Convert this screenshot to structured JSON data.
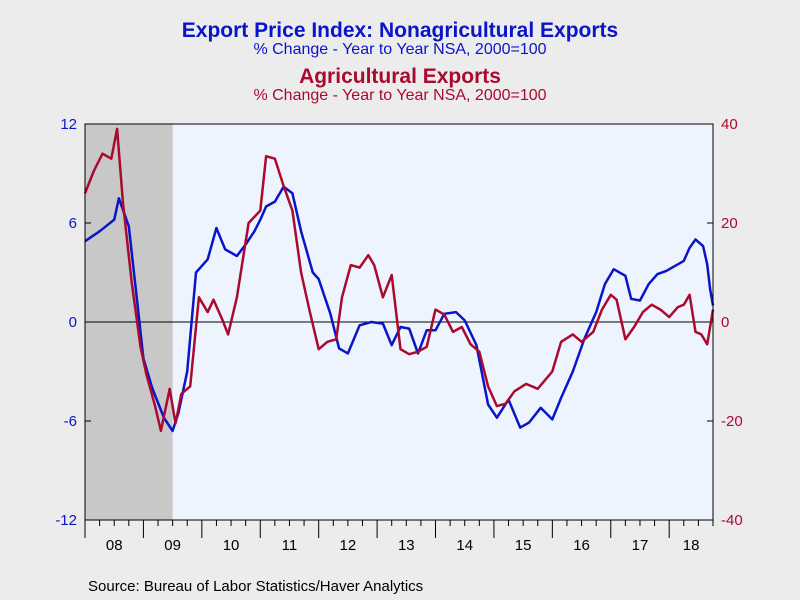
{
  "titles": {
    "line1": "Export Price Index: Nonagricultural Exports",
    "line2": "% Change - Year to Year    NSA, 2000=100",
    "line3": "Agricultural Exports",
    "line4": "% Change - Year to Year    NSA, 2000=100"
  },
  "source": "Source:  Bureau of Labor Statistics/Haver Analytics",
  "colors": {
    "nonag": "#0a14c8",
    "ag": "#aa0a2e",
    "plot_bg": "#eef4fd",
    "recession": "#c8c8c8"
  },
  "chart_data": {
    "type": "line",
    "x_unit": "year",
    "xlim": [
      2008.0,
      2018.75
    ],
    "x_tick_labels": [
      "08",
      "09",
      "10",
      "11",
      "12",
      "13",
      "14",
      "15",
      "16",
      "17",
      "18"
    ],
    "left_axis": {
      "ylim": [
        -12,
        12
      ],
      "ticks": [
        "12",
        "6",
        "0",
        "-6",
        "-12"
      ],
      "color": "#0a14c8"
    },
    "right_axis": {
      "ylim": [
        -40,
        40
      ],
      "ticks": [
        "40",
        "20",
        "0",
        "-20",
        "-40"
      ],
      "color": "#aa0a2e"
    },
    "recession_shading": [
      2008.0,
      2009.5
    ],
    "zero_line": true,
    "series": [
      {
        "name": "Nonagricultural Exports",
        "axis": "left",
        "points": [
          [
            2008.0,
            4.9
          ],
          [
            2008.25,
            5.5
          ],
          [
            2008.5,
            6.2
          ],
          [
            2008.58,
            7.5
          ],
          [
            2008.75,
            5.8
          ],
          [
            2008.9,
            1.0
          ],
          [
            2009.0,
            -2.2
          ],
          [
            2009.15,
            -4.0
          ],
          [
            2009.35,
            -5.8
          ],
          [
            2009.5,
            -6.6
          ],
          [
            2009.6,
            -5.5
          ],
          [
            2009.75,
            -3.0
          ],
          [
            2009.9,
            3.0
          ],
          [
            2010.1,
            3.8
          ],
          [
            2010.25,
            5.7
          ],
          [
            2010.4,
            4.4
          ],
          [
            2010.6,
            4.0
          ],
          [
            2010.75,
            4.7
          ],
          [
            2010.9,
            5.5
          ],
          [
            2011.0,
            6.2
          ],
          [
            2011.1,
            7.0
          ],
          [
            2011.25,
            7.3
          ],
          [
            2011.4,
            8.2
          ],
          [
            2011.55,
            7.8
          ],
          [
            2011.7,
            5.5
          ],
          [
            2011.9,
            3.0
          ],
          [
            2012.0,
            2.6
          ],
          [
            2012.2,
            0.5
          ],
          [
            2012.35,
            -1.6
          ],
          [
            2012.5,
            -1.9
          ],
          [
            2012.7,
            -0.2
          ],
          [
            2012.9,
            0.0
          ],
          [
            2013.1,
            -0.1
          ],
          [
            2013.25,
            -1.4
          ],
          [
            2013.4,
            -0.3
          ],
          [
            2013.55,
            -0.4
          ],
          [
            2013.7,
            -1.9
          ],
          [
            2013.85,
            -0.5
          ],
          [
            2014.0,
            -0.5
          ],
          [
            2014.15,
            0.5
          ],
          [
            2014.35,
            0.6
          ],
          [
            2014.5,
            0.1
          ],
          [
            2014.7,
            -1.4
          ],
          [
            2014.9,
            -5.0
          ],
          [
            2015.05,
            -5.8
          ],
          [
            2015.25,
            -4.7
          ],
          [
            2015.45,
            -6.4
          ],
          [
            2015.6,
            -6.1
          ],
          [
            2015.8,
            -5.2
          ],
          [
            2016.0,
            -5.9
          ],
          [
            2016.15,
            -4.6
          ],
          [
            2016.35,
            -3.0
          ],
          [
            2016.55,
            -1.0
          ],
          [
            2016.75,
            0.6
          ],
          [
            2016.9,
            2.3
          ],
          [
            2017.05,
            3.2
          ],
          [
            2017.25,
            2.8
          ],
          [
            2017.35,
            1.4
          ],
          [
            2017.5,
            1.3
          ],
          [
            2017.65,
            2.3
          ],
          [
            2017.8,
            2.9
          ],
          [
            2017.95,
            3.1
          ],
          [
            2018.1,
            3.4
          ],
          [
            2018.25,
            3.7
          ],
          [
            2018.35,
            4.5
          ],
          [
            2018.45,
            5.0
          ],
          [
            2018.58,
            4.6
          ],
          [
            2018.65,
            3.5
          ],
          [
            2018.7,
            2.0
          ],
          [
            2018.75,
            1.0
          ]
        ]
      },
      {
        "name": "Agricultural Exports",
        "axis": "right",
        "points": [
          [
            2008.0,
            26.0
          ],
          [
            2008.15,
            30.5
          ],
          [
            2008.3,
            34.0
          ],
          [
            2008.45,
            33.0
          ],
          [
            2008.55,
            39.0
          ],
          [
            2008.65,
            24.0
          ],
          [
            2008.8,
            8.0
          ],
          [
            2008.95,
            -5.0
          ],
          [
            2009.05,
            -10.5
          ],
          [
            2009.2,
            -17.0
          ],
          [
            2009.3,
            -22.0
          ],
          [
            2009.45,
            -13.5
          ],
          [
            2009.55,
            -20.5
          ],
          [
            2009.65,
            -14.5
          ],
          [
            2009.8,
            -13.0
          ],
          [
            2009.95,
            5.0
          ],
          [
            2010.1,
            2.0
          ],
          [
            2010.2,
            4.5
          ],
          [
            2010.35,
            0.5
          ],
          [
            2010.45,
            -2.5
          ],
          [
            2010.6,
            5.0
          ],
          [
            2010.8,
            20.0
          ],
          [
            2011.0,
            22.5
          ],
          [
            2011.1,
            33.5
          ],
          [
            2011.25,
            33.0
          ],
          [
            2011.4,
            27.5
          ],
          [
            2011.55,
            22.5
          ],
          [
            2011.7,
            10.0
          ],
          [
            2011.85,
            2.0
          ],
          [
            2012.0,
            -5.5
          ],
          [
            2012.15,
            -4.0
          ],
          [
            2012.3,
            -3.5
          ],
          [
            2012.4,
            5.0
          ],
          [
            2012.55,
            11.5
          ],
          [
            2012.7,
            11.0
          ],
          [
            2012.85,
            13.5
          ],
          [
            2012.95,
            11.5
          ],
          [
            2013.1,
            5.0
          ],
          [
            2013.25,
            9.5
          ],
          [
            2013.4,
            -5.5
          ],
          [
            2013.55,
            -6.5
          ],
          [
            2013.7,
            -6.0
          ],
          [
            2013.85,
            -5.0
          ],
          [
            2014.0,
            2.5
          ],
          [
            2014.15,
            1.5
          ],
          [
            2014.3,
            -2.0
          ],
          [
            2014.45,
            -1.0
          ],
          [
            2014.6,
            -4.5
          ],
          [
            2014.75,
            -6.0
          ],
          [
            2014.9,
            -13.0
          ],
          [
            2015.05,
            -17.0
          ],
          [
            2015.2,
            -16.5
          ],
          [
            2015.35,
            -14.0
          ],
          [
            2015.55,
            -12.5
          ],
          [
            2015.75,
            -13.5
          ],
          [
            2016.0,
            -10.0
          ],
          [
            2016.15,
            -4.0
          ],
          [
            2016.35,
            -2.5
          ],
          [
            2016.5,
            -4.0
          ],
          [
            2016.7,
            -2.0
          ],
          [
            2016.85,
            2.5
          ],
          [
            2017.0,
            5.5
          ],
          [
            2017.1,
            4.5
          ],
          [
            2017.25,
            -3.5
          ],
          [
            2017.4,
            -1.0
          ],
          [
            2017.55,
            2.0
          ],
          [
            2017.7,
            3.5
          ],
          [
            2017.85,
            2.5
          ],
          [
            2018.0,
            1.0
          ],
          [
            2018.15,
            3.0
          ],
          [
            2018.25,
            3.5
          ],
          [
            2018.35,
            5.5
          ],
          [
            2018.45,
            -2.0
          ],
          [
            2018.55,
            -2.5
          ],
          [
            2018.65,
            -4.5
          ],
          [
            2018.75,
            2.5
          ]
        ]
      }
    ]
  }
}
